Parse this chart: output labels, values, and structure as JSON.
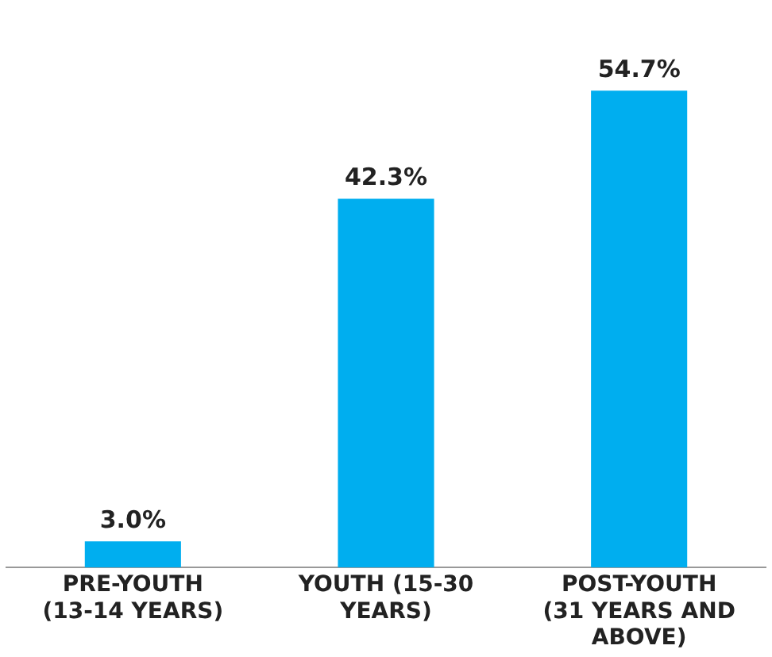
{
  "chart_data": {
    "type": "bar",
    "categories": [
      "PRE-YOUTH (13-14 YEARS)",
      "YOUTH (15-30 YEARS)",
      "POST-YOUTH (31 YEARS AND ABOVE)"
    ],
    "values": [
      3.0,
      42.3,
      54.7
    ],
    "value_labels": [
      "3.0%",
      "42.3%",
      "54.7%"
    ],
    "color": "#00aeef",
    "grid": false,
    "legend": false,
    "tick_labels": "x"
  }
}
